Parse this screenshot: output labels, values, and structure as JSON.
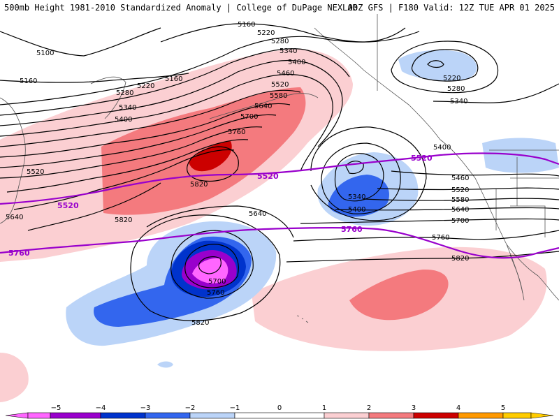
{
  "header": {
    "left_title": "500mb Height 1981-2010 Standardized Anomaly | College of DuPage NEXLAB",
    "right_title": "00Z GFS | F180 Valid: 12Z TUE APR 01 2025"
  },
  "colors": {
    "contour": "#000000",
    "highlight_contour": "#9900cc",
    "coast": "#555555",
    "neg5": "#ff66ff",
    "neg4": "#9900cc",
    "neg3": "#0033cc",
    "neg2": "#3366ee",
    "neg1": "#bbd4f8",
    "zero": "#ffffff",
    "pos1": "#fbcfd2",
    "pos2": "#f47a7e",
    "pos3": "#cc0000",
    "pos4": "#ff9900",
    "pos5": "#ffcc00"
  },
  "contour_labels": {
    "top_arc": [
      "5160",
      "5220",
      "5280",
      "5340",
      "5400",
      "5460",
      "5520",
      "5580",
      "5640",
      "5700",
      "5760"
    ],
    "west": [
      "5100",
      "5160",
      "5160",
      "5220",
      "5280",
      "5340",
      "5400",
      "5520",
      "5640",
      "5820"
    ],
    "low_center": [
      "5340",
      "5400"
    ],
    "east": [
      "5400",
      "5460",
      "5520",
      "5580",
      "5640",
      "5700",
      "5760",
      "5820"
    ],
    "northeast": [
      "5220",
      "5280",
      "5340"
    ],
    "south_low": [
      "5640",
      "5700",
      "5760",
      "5820"
    ],
    "ridge": [
      "5820"
    ],
    "highlight_5520": [
      "5520",
      "5520",
      "5520"
    ],
    "highlight_5760": [
      "5760",
      "5760"
    ]
  },
  "legend": {
    "ticks": [
      "−5",
      "−4",
      "−3",
      "−2",
      "−1",
      "0",
      "1",
      "2",
      "3",
      "4",
      "5"
    ]
  }
}
